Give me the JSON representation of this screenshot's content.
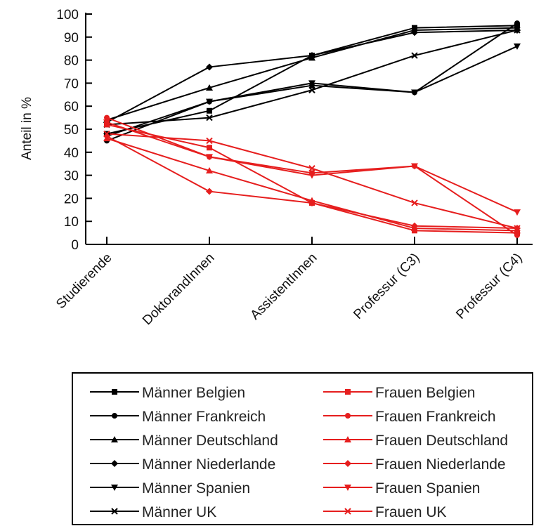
{
  "chart_data": {
    "type": "line",
    "title": "",
    "xlabel": "",
    "ylabel": "Anteil in %",
    "ylim": [
      0,
      100
    ],
    "yticks": [
      "0",
      "10",
      "20",
      "30",
      "40",
      "50",
      "60",
      "70",
      "80",
      "90",
      "100"
    ],
    "categories": [
      "Studierende",
      "DoktorandInnen",
      "AssistentInnen",
      "Professur (C3)",
      "Professur (C4)"
    ],
    "grid": false,
    "legend_position": "bottom",
    "series": [
      {
        "name": "Männer Belgien",
        "marker": "square",
        "color": "#000000",
        "values": [
          48,
          58,
          82,
          94,
          95
        ]
      },
      {
        "name": "Männer Frankreich",
        "marker": "circle",
        "color": "#000000",
        "values": [
          45,
          62,
          69,
          66,
          96
        ]
      },
      {
        "name": "Männer Deutschland",
        "marker": "triangle-up",
        "color": "#000000",
        "values": [
          54,
          68,
          81,
          93,
          94
        ]
      },
      {
        "name": "Männer Niederlande",
        "marker": "diamond",
        "color": "#000000",
        "values": [
          53,
          77,
          82,
          92,
          93
        ]
      },
      {
        "name": "Männer Spanien",
        "marker": "triangle-down",
        "color": "#000000",
        "values": [
          47,
          62,
          70,
          66,
          86
        ]
      },
      {
        "name": "Männer UK",
        "marker": "x",
        "color": "#000000",
        "values": [
          52,
          55,
          67,
          82,
          93
        ]
      },
      {
        "name": "Frauen Belgien",
        "marker": "square",
        "color": "#e61e1e",
        "values": [
          52,
          42,
          18,
          6,
          5
        ]
      },
      {
        "name": "Frauen Frankreich",
        "marker": "circle",
        "color": "#e61e1e",
        "values": [
          55,
          38,
          31,
          34,
          4
        ]
      },
      {
        "name": "Frauen Deutschland",
        "marker": "triangle-up",
        "color": "#e61e1e",
        "values": [
          46,
          32,
          19,
          7,
          6
        ]
      },
      {
        "name": "Frauen Niederlande",
        "marker": "diamond",
        "color": "#e61e1e",
        "values": [
          47,
          23,
          18,
          8,
          7
        ]
      },
      {
        "name": "Frauen Spanien",
        "marker": "triangle-down",
        "color": "#e61e1e",
        "values": [
          53,
          38,
          30,
          34,
          14
        ]
      },
      {
        "name": "Frauen UK",
        "marker": "x",
        "color": "#e61e1e",
        "values": [
          48,
          45,
          33,
          18,
          7
        ]
      }
    ]
  }
}
